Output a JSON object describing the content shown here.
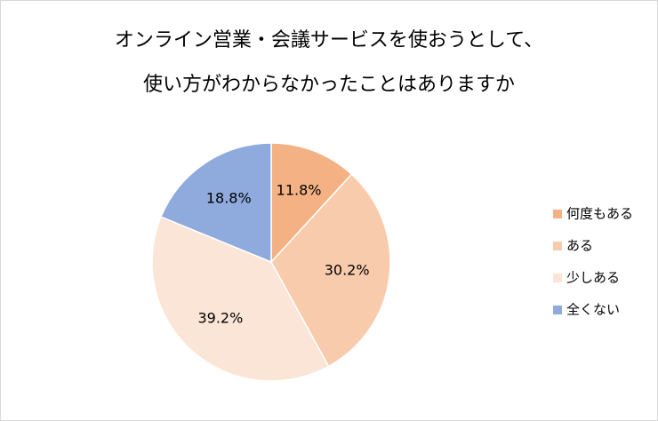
{
  "chart_data": {
    "type": "pie",
    "title": [
      "オンライン営業・会議サービスを使おうとして、",
      "使い方がわからなかったことはありますか"
    ],
    "categories": [
      "何度もある",
      "ある",
      "少しある",
      "全くない"
    ],
    "values": [
      11.8,
      30.2,
      39.2,
      18.8
    ],
    "value_labels": [
      "11.8%",
      "30.2%",
      "39.2%",
      "18.8%"
    ],
    "colors": [
      "#f4b183",
      "#f8cbad",
      "#fbe5d6",
      "#8faadc"
    ],
    "legend": "right"
  }
}
